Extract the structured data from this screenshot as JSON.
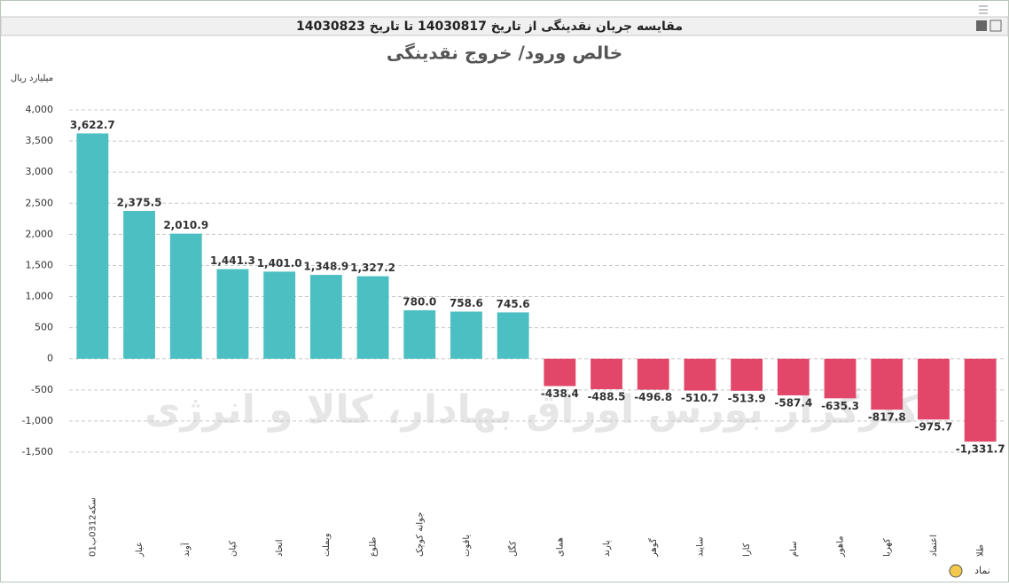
{
  "window_title": "مقایسه جریان نقدینگی از تاریخ 14030817 تا تاریخ 14030823",
  "chart_data": {
    "type": "bar",
    "title": "خالص ورود/ خروج نقدینگی",
    "y_label": "میلیارد ریال",
    "x_label": "نماد",
    "watermark": "کارگزار بورس اوراق بهادار، کالا و انرژی",
    "categories": [
      "سکه0312ب01",
      "عیار",
      "آوند",
      "کیان",
      "اتحاد",
      "ویملت",
      "طلوع",
      "جوانه کوچک",
      "یاقوت",
      "کگل",
      "همای",
      "پارند",
      "گوهر",
      "سایند",
      "کارا",
      "سام",
      "ماهور",
      "کهربا",
      "اعتماد",
      "طلا"
    ],
    "values": [
      3622.7,
      2375.5,
      2010.9,
      1441.3,
      1401.0,
      1348.9,
      1327.2,
      780.0,
      758.6,
      745.6,
      -438.4,
      -488.5,
      -496.8,
      -510.7,
      -513.9,
      -587.4,
      -635.3,
      -817.8,
      -975.7,
      -1331.7
    ],
    "value_labels": [
      "3,622.7",
      "2,375.5",
      "2,010.9",
      "1,441.3",
      "1,401.0",
      "1,348.9",
      "1,327.2",
      "780.0",
      "758.6",
      "745.6",
      "-438.4",
      "-488.5",
      "-496.8",
      "-510.7",
      "-513.9",
      "-587.4",
      "-635.3",
      "-817.8",
      "-975.7",
      "-1,331.7"
    ],
    "positive_color": "#4bbfc2",
    "negative_color": "#e2476a",
    "ylim": [
      -1500,
      4000
    ],
    "yticks": [
      {
        "value": -1500,
        "label": "-1,500"
      },
      {
        "value": -1000,
        "label": "-1,000"
      },
      -500,
      0,
      500,
      {
        "value": 1000,
        "label": "1,000"
      },
      {
        "value": 1500,
        "label": "1,500"
      },
      {
        "value": 2000,
        "label": "2,000"
      },
      {
        "value": 2500,
        "label": "2,500"
      },
      {
        "value": 3000,
        "label": "3,000"
      },
      {
        "value": 3500,
        "label": "3,500"
      },
      {
        "value": 4000,
        "label": "4,000"
      }
    ],
    "grid": true
  }
}
